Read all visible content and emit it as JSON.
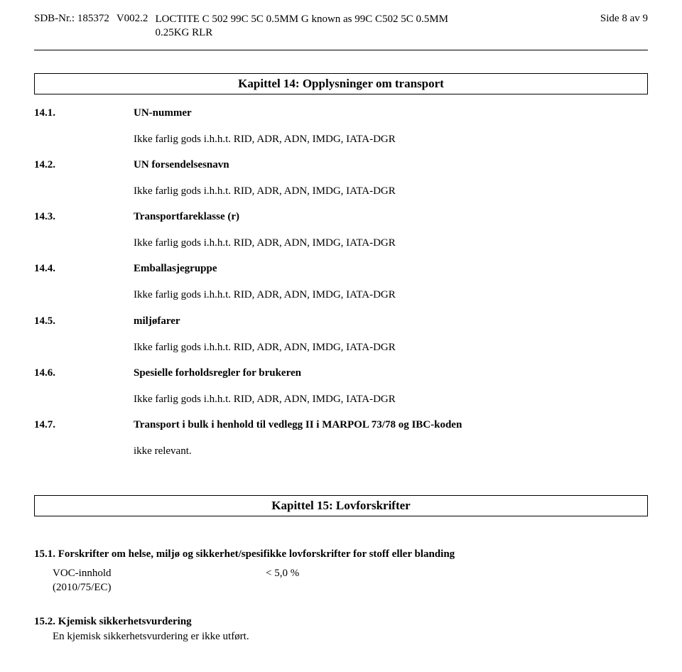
{
  "header": {
    "sdb_label": "SDB-Nr.:",
    "sdb_value": "185372",
    "version": "V002.2",
    "product_line1": "LOCTITE C 502 99C 5C 0.5MM G known as 99C C502 5C 0.5MM",
    "product_line2": "0.25KG RLR",
    "page": "Side 8 av 9"
  },
  "chapter14": {
    "title": "Kapittel 14: Opplysninger om transport",
    "items": [
      {
        "num": "14.1.",
        "label": "UN-nummer",
        "body": "Ikke farlig gods i.h.h.t. RID, ADR, ADN, IMDG, IATA-DGR"
      },
      {
        "num": "14.2.",
        "label": "UN forsendelsesnavn",
        "body": "Ikke farlig gods i.h.h.t. RID, ADR, ADN, IMDG, IATA-DGR"
      },
      {
        "num": "14.3.",
        "label": "Transportfareklasse (r)",
        "body": "Ikke farlig gods i.h.h.t. RID, ADR, ADN, IMDG, IATA-DGR"
      },
      {
        "num": "14.4.",
        "label": "Emballasjegruppe",
        "body": "Ikke farlig gods i.h.h.t. RID, ADR, ADN, IMDG, IATA-DGR"
      },
      {
        "num": "14.5.",
        "label": "miljøfarer",
        "body": "Ikke farlig gods i.h.h.t. RID, ADR, ADN, IMDG, IATA-DGR"
      },
      {
        "num": "14.6.",
        "label": "Spesielle forholdsregler for brukeren",
        "body": "Ikke farlig gods i.h.h.t. RID, ADR, ADN, IMDG, IATA-DGR"
      },
      {
        "num": "14.7.",
        "label": "Transport i bulk i henhold til vedlegg II i MARPOL 73/78 og IBC-koden",
        "body": "ikke relevant."
      }
    ]
  },
  "chapter15": {
    "title": "Kapittel 15: Lovforskrifter",
    "sec151": {
      "heading": "15.1. Forskrifter om helse, miljø og sikkerhet/spesifikke lovforskrifter for stoff eller blanding",
      "voc_label": "VOC-innhold",
      "voc_sub": "(2010/75/EC)",
      "voc_value": "< 5,0 %"
    },
    "sec152": {
      "heading": "15.2. Kjemisk sikkerhetsvurdering",
      "body": "En kjemisk sikkerhetsvurdering er ikke utført."
    }
  }
}
